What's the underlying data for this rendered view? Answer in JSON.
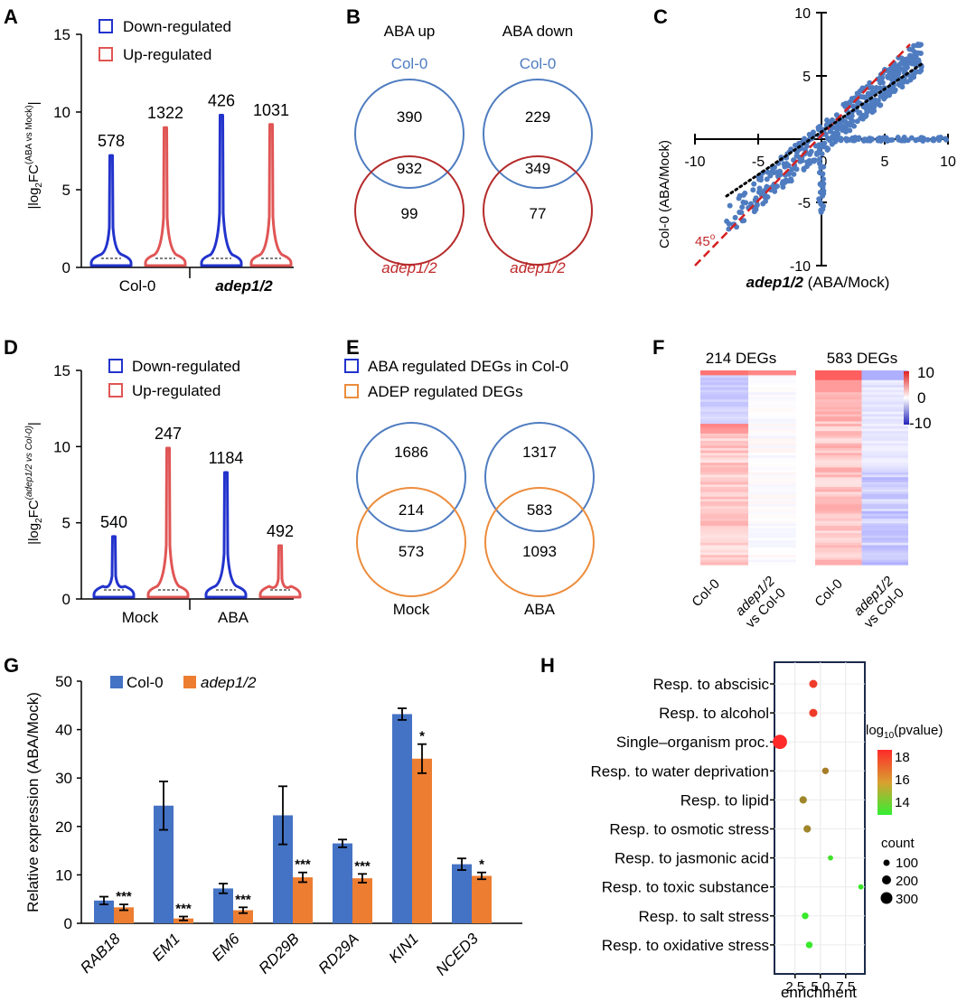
{
  "panel_letters": {
    "a": "A",
    "b": "B",
    "c": "C",
    "d": "D",
    "e": "E",
    "f": "F",
    "g": "G",
    "h": "H"
  },
  "colors": {
    "blue": "#2233cc",
    "red": "#e05555",
    "venn_blue": "#4f7cc0",
    "venn_red": "#b52a2a",
    "bar_blue": "#4472c4",
    "bar_orange": "#ed7d31",
    "text_blue": "#4f7cc0",
    "text_red": "#c0282a"
  },
  "chart_data": [
    {
      "id": "A",
      "type": "violin",
      "ylabel_main": "|log",
      "ylabel_sub": "2",
      "ylabel_fc": "FC",
      "ylabel_sup": "(ABA vs Mock)",
      "ylim": [
        0,
        15
      ],
      "yticks": [
        "0",
        "5",
        "10",
        "15"
      ],
      "legend": {
        "down": "Down-regulated",
        "up": "Up-regulated"
      },
      "groups": [
        "Col-0",
        "adep1/2"
      ],
      "violins": [
        {
          "group": "Col-0",
          "series": "Down-regulated",
          "count": "578",
          "max": 7.2
        },
        {
          "group": "Col-0",
          "series": "Up-regulated",
          "count": "1322",
          "max": 9.0
        },
        {
          "group": "adep1/2",
          "series": "Down-regulated",
          "count": "426",
          "max": 9.8
        },
        {
          "group": "adep1/2",
          "series": "Up-regulated",
          "count": "1031",
          "max": 9.2
        }
      ]
    },
    {
      "id": "B",
      "type": "venn",
      "columns": [
        {
          "title": "ABA up",
          "top_label": "Col-0",
          "bottom_label": "adep1/2",
          "top_only": "390",
          "overlap": "932",
          "bottom_only": "99"
        },
        {
          "title": "ABA down",
          "top_label": "Col-0",
          "bottom_label": "adep1/2",
          "top_only": "229",
          "overlap": "349",
          "bottom_only": "77"
        }
      ]
    },
    {
      "id": "C",
      "type": "scatter",
      "xlabel_ital": "adep1/2",
      "xlabel_rest": " (ABA/Mock)",
      "ylabel": "Col-0 (ABA/Mock)",
      "xlim": [
        -10,
        10
      ],
      "ylim": [
        -10,
        10
      ],
      "xticks": [
        "-10",
        "-5",
        "0",
        "5",
        "10"
      ],
      "yticks": [
        "-10",
        "-5",
        "5",
        "10"
      ],
      "angle_label": "45",
      "angle_sup": "o",
      "lines": {
        "diagonal": [
          [
            -10,
            -10
          ],
          [
            7,
            7.5
          ]
        ],
        "fit": [
          [
            -7.5,
            -4.5
          ],
          [
            8,
            6
          ]
        ]
      }
    },
    {
      "id": "D",
      "type": "violin",
      "ylabel_main": "|log",
      "ylabel_sub": "2",
      "ylabel_fc": "FC",
      "ylabel_sup": "(adep1/2 vs Col-0)",
      "ylim": [
        0,
        15
      ],
      "yticks": [
        "0",
        "5",
        "10",
        "15"
      ],
      "legend": {
        "down": "Down-regulated",
        "up": "Up-regulated"
      },
      "groups": [
        "Mock",
        "ABA"
      ],
      "violins": [
        {
          "group": "Mock",
          "series": "Down-regulated",
          "count": "540",
          "max": 4.1
        },
        {
          "group": "Mock",
          "series": "Up-regulated",
          "count": "247",
          "max": 9.9
        },
        {
          "group": "ABA",
          "series": "Down-regulated",
          "count": "1184",
          "max": 8.3
        },
        {
          "group": "ABA",
          "series": "Up-regulated",
          "count": "492",
          "max": 3.5
        }
      ]
    },
    {
      "id": "E",
      "type": "venn",
      "legend": {
        "blue": "ABA regulated DEGs in Col-0",
        "orange": "ADEP regulated DEGs"
      },
      "columns": [
        {
          "bottom_label": "Mock",
          "top_only": "1686",
          "overlap": "214",
          "bottom_only": "573"
        },
        {
          "bottom_label": "ABA",
          "top_only": "1317",
          "overlap": "583",
          "bottom_only": "1093"
        }
      ]
    },
    {
      "id": "F",
      "type": "heatmap",
      "maps": [
        {
          "title": "214 DEGs",
          "col1": "Col-0",
          "col2a": "adep1/2",
          "col2b": "vs Col-0"
        },
        {
          "title": "583 DEGs",
          "col1": "Col-0",
          "col2a": "adep1/2",
          "col2b": "vs Col-0"
        }
      ],
      "scale": [
        "10",
        "0",
        "-10"
      ]
    },
    {
      "id": "G",
      "type": "bar",
      "ylabel": "Relative expression (ABA/Mock)",
      "ylim": [
        0,
        50
      ],
      "yticks": [
        "0",
        "10",
        "20",
        "30",
        "40",
        "50"
      ],
      "legend": {
        "blue": "Col-0",
        "orange": "adep1/2"
      },
      "categories": [
        "RAB18",
        "EM1",
        "EM6",
        "RD29B",
        "RD29A",
        "KIN1",
        "NCED3"
      ],
      "series": [
        {
          "name": "Col-0",
          "values": [
            4.7,
            24.3,
            7.2,
            22.3,
            16.5,
            43.2,
            12.2
          ],
          "errors": [
            0.8,
            5.0,
            1.0,
            6.0,
            0.8,
            1.2,
            1.2
          ]
        },
        {
          "name": "adep1/2",
          "values": [
            3.3,
            1.0,
            2.7,
            9.5,
            9.3,
            34.0,
            9.8
          ],
          "errors": [
            0.6,
            0.4,
            0.6,
            1.0,
            0.9,
            3.0,
            0.7
          ]
        }
      ],
      "significance": [
        "***",
        "***",
        "***",
        "***",
        "***",
        "*",
        "*"
      ]
    },
    {
      "id": "H",
      "type": "dot",
      "xlabel": "enrichment",
      "xticks": [
        "2.5",
        "5.0",
        "7.5"
      ],
      "terms": [
        {
          "label": "Resp. to abscisic",
          "x": 4.3,
          "p": 17.8,
          "count": 150
        },
        {
          "label": "Resp. to alcohol",
          "x": 4.3,
          "p": 17.8,
          "count": 150
        },
        {
          "label": "Single–organism proc.",
          "x": 1.0,
          "p": 18.2,
          "count": 320
        },
        {
          "label": "Resp. to water deprivation",
          "x": 5.5,
          "p": 16.2,
          "count": 110
        },
        {
          "label": "Resp. to lipid",
          "x": 3.3,
          "p": 16.0,
          "count": 130
        },
        {
          "label": "Resp. to osmotic stress",
          "x": 3.7,
          "p": 16.0,
          "count": 130
        },
        {
          "label": "Resp. to jasmonic acid",
          "x": 6.0,
          "p": 13.8,
          "count": 70
        },
        {
          "label": "Resp. to toxic substance",
          "x": 9.0,
          "p": 13.7,
          "count": 70
        },
        {
          "label": "Resp. to salt stress",
          "x": 3.5,
          "p": 13.6,
          "count": 110
        },
        {
          "label": "Resp. to oxidative stress",
          "x": 3.9,
          "p": 13.6,
          "count": 110
        }
      ],
      "legend_title_main": "log",
      "legend_title_sub": "10",
      "legend_title_rest": "(pvalue)",
      "color_ticks": [
        "18",
        "16",
        "14"
      ],
      "count_title": "count",
      "count_labels": [
        "100",
        "200",
        "300"
      ]
    }
  ]
}
